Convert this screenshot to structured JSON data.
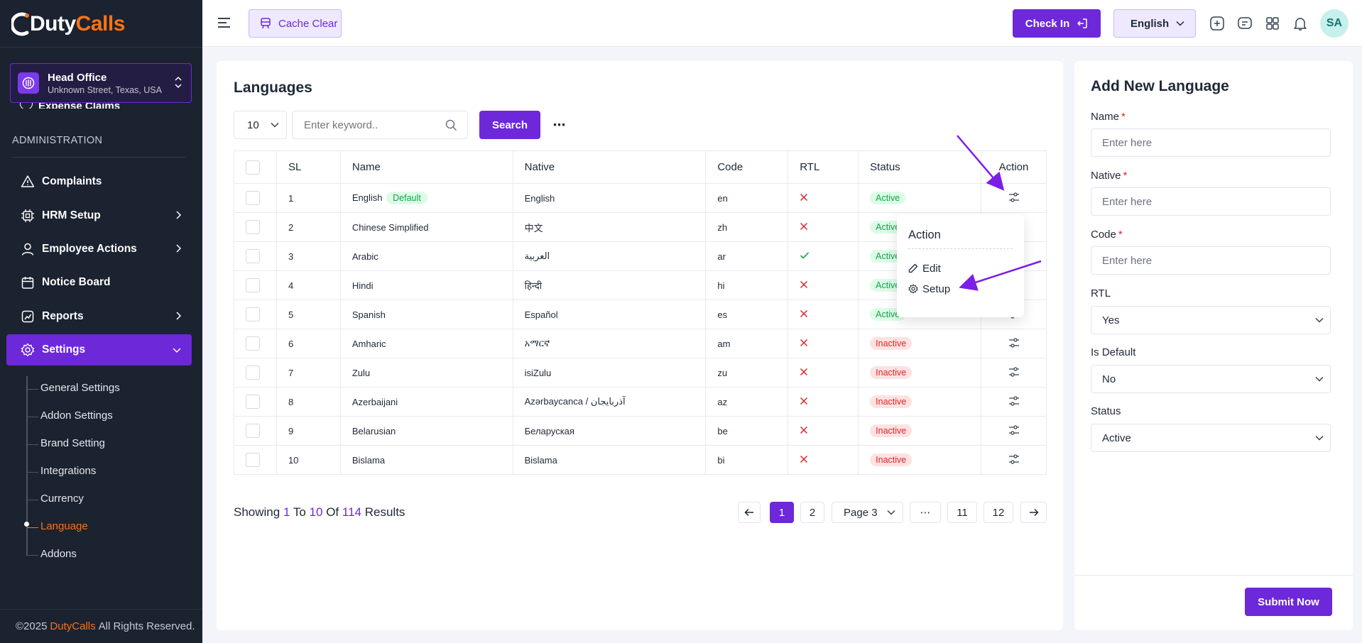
{
  "brand": {
    "logo_text_duty": "Duty",
    "logo_text_calls": "Calls",
    "copyright_prefix": "©2025",
    "copyright_brand": "DutyCalls",
    "copyright_suffix": "All Rights Reserved."
  },
  "branch": {
    "title": "Head Office",
    "address": "Unknown Street, Texas, USA"
  },
  "sidebar": {
    "partial_item": "Expense Claims",
    "section_label": "ADMINISTRATION",
    "items": [
      {
        "label": "Complaints",
        "icon": "alert-triangle-icon"
      },
      {
        "label": "HRM Setup",
        "icon": "cpu-icon"
      },
      {
        "label": "Employee Actions",
        "icon": "user-icon"
      },
      {
        "label": "Notice Board",
        "icon": "calendar-icon"
      },
      {
        "label": "Reports",
        "icon": "chart-icon"
      },
      {
        "label": "Settings",
        "icon": "gear-icon"
      }
    ],
    "sub_items": [
      "General Settings",
      "Addon Settings",
      "Brand Setting",
      "Integrations",
      "Currency",
      "Language",
      "Addons"
    ]
  },
  "topbar": {
    "cache_label": "Cache Clear",
    "checkin_label": "Check In",
    "language": "English",
    "avatar_initials": "SA"
  },
  "main": {
    "title": "Languages",
    "per_page": "10",
    "search_placeholder": "Enter keyword..",
    "search_label": "Search",
    "columns": [
      "SL",
      "Name",
      "Native",
      "Code",
      "RTL",
      "Status",
      "Action"
    ],
    "default_badge": "Default",
    "rows": [
      {
        "sl": "1",
        "name": "English",
        "native": "English",
        "code": "en",
        "rtl": false,
        "status": "Active"
      },
      {
        "sl": "2",
        "name": "Chinese Simplified",
        "native": "中文",
        "code": "zh",
        "rtl": false,
        "status": "Active"
      },
      {
        "sl": "3",
        "name": "Arabic",
        "native": "العربية",
        "code": "ar",
        "rtl": true,
        "status": "Active"
      },
      {
        "sl": "4",
        "name": "Hindi",
        "native": "हिन्दी",
        "code": "hi",
        "rtl": false,
        "status": "Active"
      },
      {
        "sl": "5",
        "name": "Spanish",
        "native": "Español",
        "code": "es",
        "rtl": false,
        "status": "Active"
      },
      {
        "sl": "6",
        "name": "Amharic",
        "native": "አማርኛ",
        "code": "am",
        "rtl": false,
        "status": "Inactive"
      },
      {
        "sl": "7",
        "name": "Zulu",
        "native": "isiZulu",
        "code": "zu",
        "rtl": false,
        "status": "Inactive"
      },
      {
        "sl": "8",
        "name": "Azerbaijani",
        "native": "Azərbaycanca / آذربایجان",
        "code": "az",
        "rtl": false,
        "status": "Inactive"
      },
      {
        "sl": "9",
        "name": "Belarusian",
        "native": "Беларуская",
        "code": "be",
        "rtl": false,
        "status": "Inactive"
      },
      {
        "sl": "10",
        "name": "Bislama",
        "native": "Bislama",
        "code": "bi",
        "rtl": false,
        "status": "Inactive"
      }
    ],
    "showing": {
      "label1": "Showing",
      "from": "1",
      "label2": "To",
      "to": "10",
      "label3": "Of",
      "total": "114",
      "label4": "Results"
    },
    "pagination": {
      "current": "1",
      "next": "2",
      "page_select": "Page 3",
      "ellipsis": "⋯",
      "p11": "11",
      "p12": "12"
    },
    "popup": {
      "title": "Action",
      "edit": "Edit",
      "setup": "Setup"
    }
  },
  "form": {
    "title": "Add New Language",
    "name_label": "Name",
    "native_label": "Native",
    "code_label": "Code",
    "placeholder": "Enter here",
    "rtl_label": "RTL",
    "rtl_value": "Yes",
    "default_label": "Is Default",
    "default_value": "No",
    "status_label": "Status",
    "status_value": "Active",
    "required_mark": "*",
    "submit_label": "Submit Now"
  },
  "colors": {
    "accent": "#6d28d9",
    "brand_orange": "#f97316",
    "sidebar_bg": "#1b2230",
    "active_green": "#16a34a",
    "inactive_red": "#dc2626"
  }
}
